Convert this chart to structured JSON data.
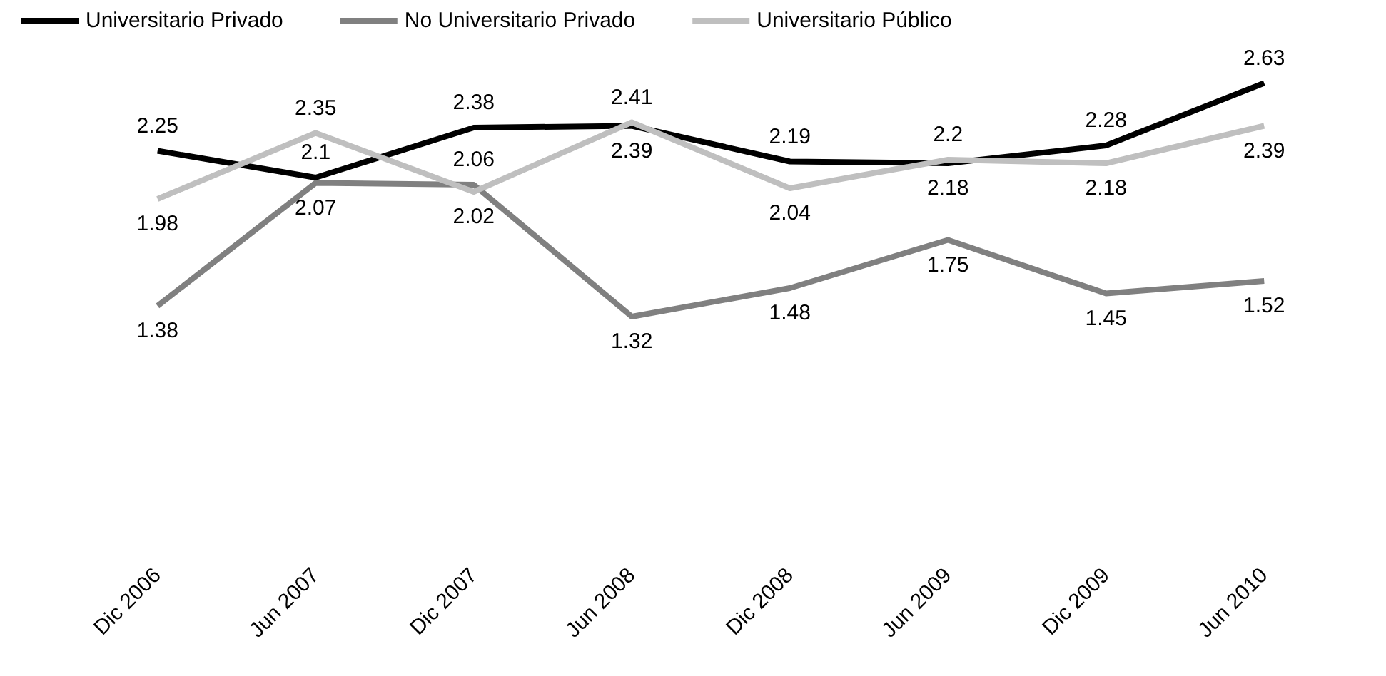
{
  "chart_data": {
    "type": "line",
    "categories": [
      "Dic 2006",
      "Jun 2007",
      "Dic 2007",
      "Jun 2008",
      "Dic 2008",
      "Jun 2009",
      "Dic 2009",
      "Jun 2010"
    ],
    "series": [
      {
        "name": "Universitario Privado",
        "color": "#000000",
        "values": [
          2.25,
          2.1,
          2.38,
          2.39,
          2.19,
          2.18,
          2.28,
          2.63
        ]
      },
      {
        "name": "No Universitario Privado",
        "color": "#808080",
        "values": [
          1.38,
          2.07,
          2.06,
          1.32,
          1.48,
          1.75,
          1.45,
          1.52
        ]
      },
      {
        "name": "Universitario Público",
        "color": "#bfbfbf",
        "values": [
          1.98,
          2.35,
          2.02,
          2.41,
          2.04,
          2.2,
          2.18,
          2.39
        ]
      }
    ],
    "data_labels": true,
    "legend": "top",
    "marker": "none",
    "grid": false
  }
}
